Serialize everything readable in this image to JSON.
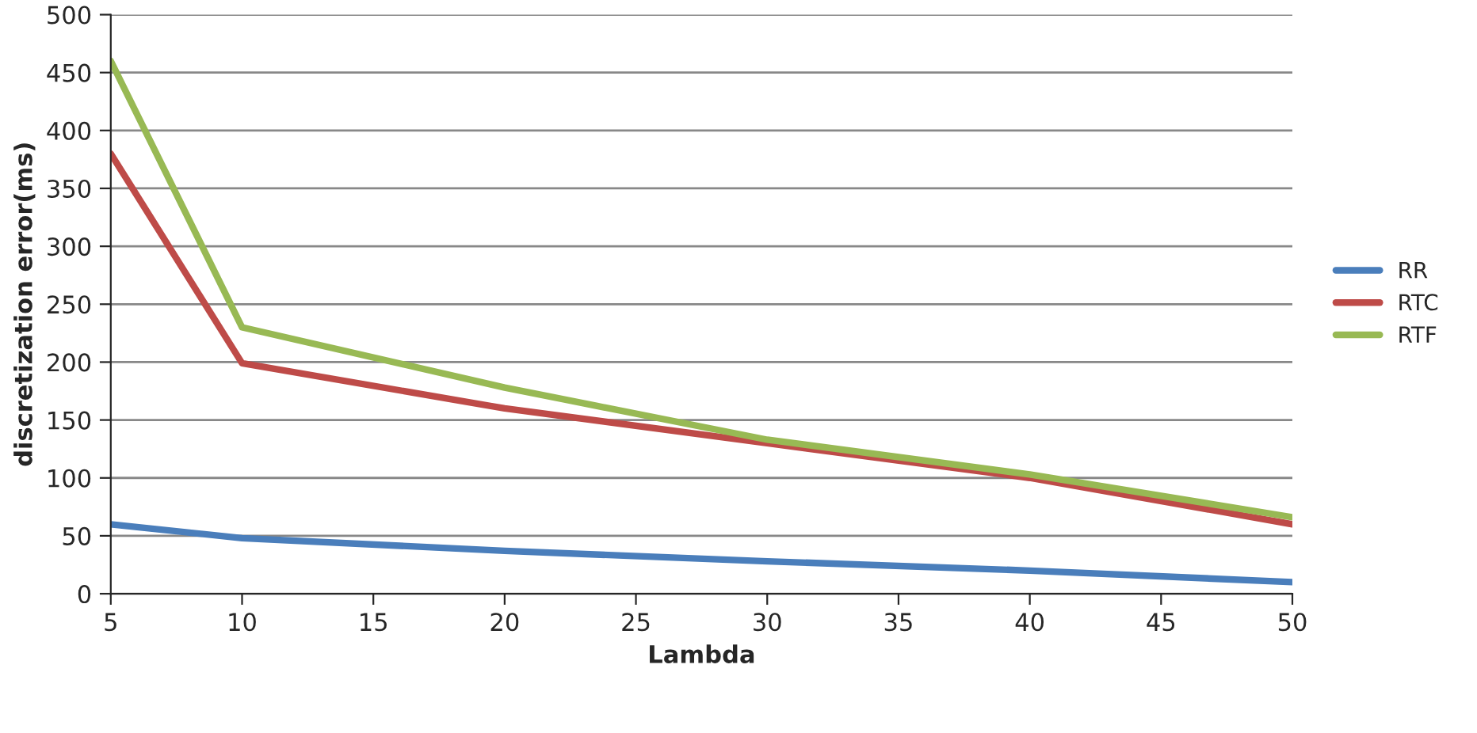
{
  "chart_data": {
    "type": "line",
    "xlabel": "Lambda",
    "ylabel": "discretization error(ms)",
    "x": [
      5,
      10,
      20,
      30,
      40,
      50
    ],
    "series": [
      {
        "name": "RR",
        "color": "#4a7ebb",
        "values": [
          60,
          48,
          37,
          28,
          20,
          10
        ]
      },
      {
        "name": "RTC",
        "color": "#be4b48",
        "values": [
          380,
          199,
          160,
          130,
          100,
          60
        ]
      },
      {
        "name": "RTF",
        "color": "#98b954",
        "values": [
          460,
          230,
          178,
          133,
          103,
          66
        ]
      }
    ],
    "xlim": [
      5,
      50
    ],
    "xticks": [
      5,
      10,
      15,
      20,
      25,
      30,
      35,
      40,
      45,
      50
    ],
    "ylim": [
      0,
      500
    ],
    "yticks": [
      0,
      50,
      100,
      150,
      200,
      250,
      300,
      350,
      400,
      450,
      500
    ],
    "grid": "y",
    "legend": "right",
    "marker": "none",
    "line_style": "solid"
  }
}
